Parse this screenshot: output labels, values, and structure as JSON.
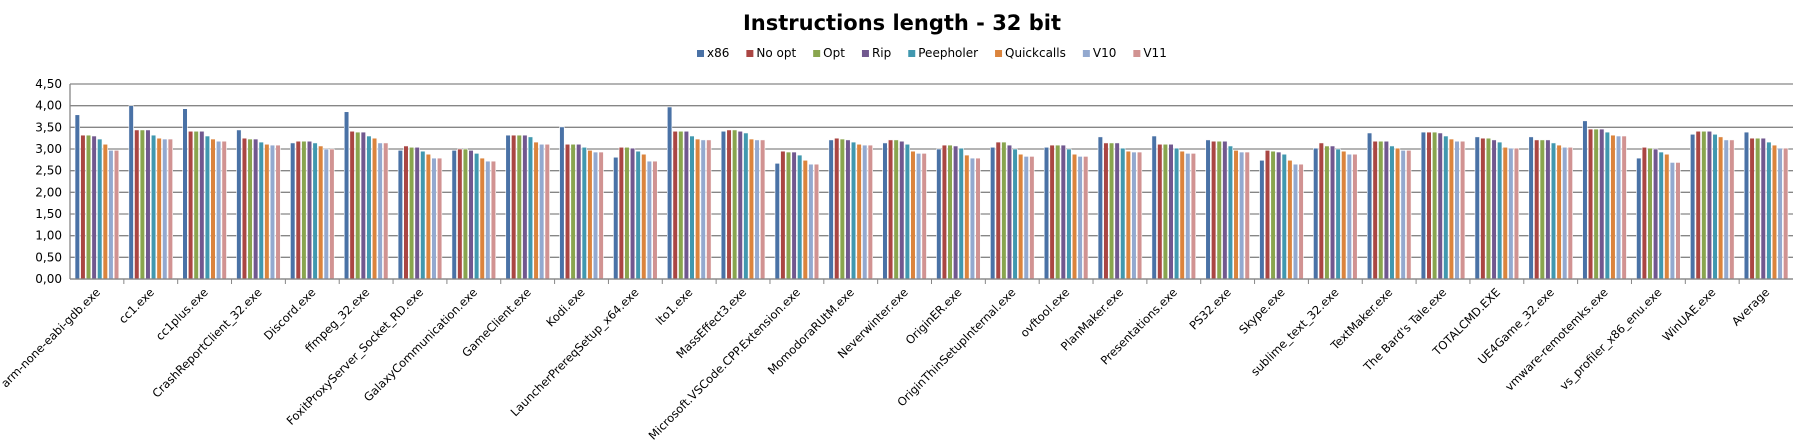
{
  "chart_data": {
    "type": "bar",
    "title": "Instructions length - 32 bit",
    "xlabel": "",
    "ylabel": "",
    "ylim": [
      0,
      4.5
    ],
    "ytick_step": 0.5,
    "yticks": [
      "0,00",
      "0,50",
      "1,00",
      "1,50",
      "2,00",
      "2,50",
      "3,00",
      "3,50",
      "4,00",
      "4,50"
    ],
    "grid": true,
    "legend_position": "top",
    "categories": [
      "arm-none-eabi-gdb.exe",
      "cc1.exe",
      "cc1plus.exe",
      "CrashReportClient_32.exe",
      "Discord.exe",
      "ffmpeg_32.exe",
      "FoxitProxyServer_Socket_RD.exe",
      "GalaxyCommunication.exe",
      "GameClient.exe",
      "Kodi.exe",
      "LauncherPrereqSetup_x64.exe",
      "lto1.exe",
      "MassEffect3.exe",
      "Microsoft.VSCode.CPP.Extension.exe",
      "MomodoraRUtM.exe",
      "Neverwinter.exe",
      "OriginER.exe",
      "OriginThinSetupInternal.exe",
      "ovftool.exe",
      "PlanMaker.exe",
      "Presentations.exe",
      "PS32.exe",
      "Skype.exe",
      "sublime_text_32.exe",
      "TextMaker.exe",
      "The Bard's Tale.exe",
      "TOTALCMD.EXE",
      "UE4Game_32.exe",
      "vmware-remotemks.exe",
      "vs_profiler_x86_enu.exe",
      "WinUAE.exe",
      "Average"
    ],
    "series": [
      {
        "name": "x86",
        "color": "#4A72A6",
        "values": [
          3.79,
          4.0,
          3.93,
          3.44,
          3.14,
          3.86,
          2.97,
          2.97,
          3.32,
          3.51,
          2.81,
          3.97,
          3.41,
          2.67,
          3.21,
          3.14,
          3.0,
          3.04,
          3.04,
          3.28,
          3.3,
          3.21,
          2.74,
          3.02,
          3.37,
          3.39,
          3.28,
          3.28,
          3.65,
          2.79,
          3.34,
          3.39
        ]
      },
      {
        "name": "No opt",
        "color": "#AA4643",
        "values": [
          3.32,
          3.44,
          3.41,
          3.25,
          3.18,
          3.41,
          3.07,
          3.0,
          3.32,
          3.11,
          3.04,
          3.41,
          3.44,
          2.95,
          3.25,
          3.21,
          3.09,
          3.16,
          3.09,
          3.14,
          3.11,
          3.18,
          2.97,
          3.14,
          3.18,
          3.39,
          3.25,
          3.21,
          3.46,
          3.04,
          3.41,
          3.25
        ]
      },
      {
        "name": "Opt",
        "color": "#89A54E",
        "values": [
          3.32,
          3.44,
          3.41,
          3.23,
          3.18,
          3.39,
          3.04,
          3.0,
          3.32,
          3.11,
          3.04,
          3.41,
          3.44,
          2.93,
          3.23,
          3.21,
          3.09,
          3.16,
          3.09,
          3.14,
          3.11,
          3.18,
          2.95,
          3.07,
          3.18,
          3.39,
          3.25,
          3.21,
          3.46,
          3.02,
          3.41,
          3.25
        ]
      },
      {
        "name": "Rip",
        "color": "#71588F",
        "values": [
          3.3,
          3.44,
          3.41,
          3.23,
          3.18,
          3.39,
          3.04,
          2.97,
          3.32,
          3.11,
          3.02,
          3.41,
          3.41,
          2.93,
          3.21,
          3.18,
          3.07,
          3.09,
          3.09,
          3.14,
          3.11,
          3.18,
          2.93,
          3.07,
          3.18,
          3.37,
          3.21,
          3.21,
          3.46,
          3.0,
          3.41,
          3.25
        ]
      },
      {
        "name": "Peepholer",
        "color": "#4198AF",
        "values": [
          3.23,
          3.32,
          3.3,
          3.16,
          3.14,
          3.3,
          2.95,
          2.9,
          3.28,
          3.04,
          2.95,
          3.3,
          3.37,
          2.86,
          3.16,
          3.11,
          3.02,
          3.0,
          3.0,
          3.02,
          3.02,
          3.07,
          2.88,
          3.0,
          3.07,
          3.3,
          3.16,
          3.14,
          3.39,
          2.93,
          3.34,
          3.16
        ]
      },
      {
        "name": "Quickcalls",
        "color": "#DB843D",
        "values": [
          3.11,
          3.25,
          3.23,
          3.11,
          3.07,
          3.25,
          2.88,
          2.79,
          3.16,
          2.97,
          2.88,
          3.23,
          3.23,
          2.74,
          3.11,
          2.95,
          2.86,
          2.88,
          2.88,
          2.95,
          2.95,
          2.97,
          2.74,
          2.95,
          3.02,
          3.23,
          3.04,
          3.09,
          3.32,
          2.88,
          3.28,
          3.09
        ]
      },
      {
        "name": "V10",
        "color": "#93A9CF",
        "values": [
          2.97,
          3.23,
          3.18,
          3.09,
          3.0,
          3.14,
          2.79,
          2.72,
          3.11,
          2.93,
          2.72,
          3.21,
          3.21,
          2.65,
          3.09,
          2.9,
          2.79,
          2.83,
          2.83,
          2.93,
          2.9,
          2.93,
          2.65,
          2.88,
          2.97,
          3.18,
          3.02,
          3.04,
          3.3,
          2.69,
          3.21,
          3.02
        ]
      },
      {
        "name": "V11",
        "color": "#D19392",
        "values": [
          2.97,
          3.23,
          3.18,
          3.09,
          3.0,
          3.14,
          2.79,
          2.72,
          3.11,
          2.93,
          2.72,
          3.21,
          3.21,
          2.65,
          3.09,
          2.9,
          2.79,
          2.83,
          2.83,
          2.93,
          2.9,
          2.93,
          2.65,
          2.88,
          2.97,
          3.18,
          3.02,
          3.04,
          3.3,
          2.69,
          3.21,
          3.02
        ]
      }
    ]
  }
}
